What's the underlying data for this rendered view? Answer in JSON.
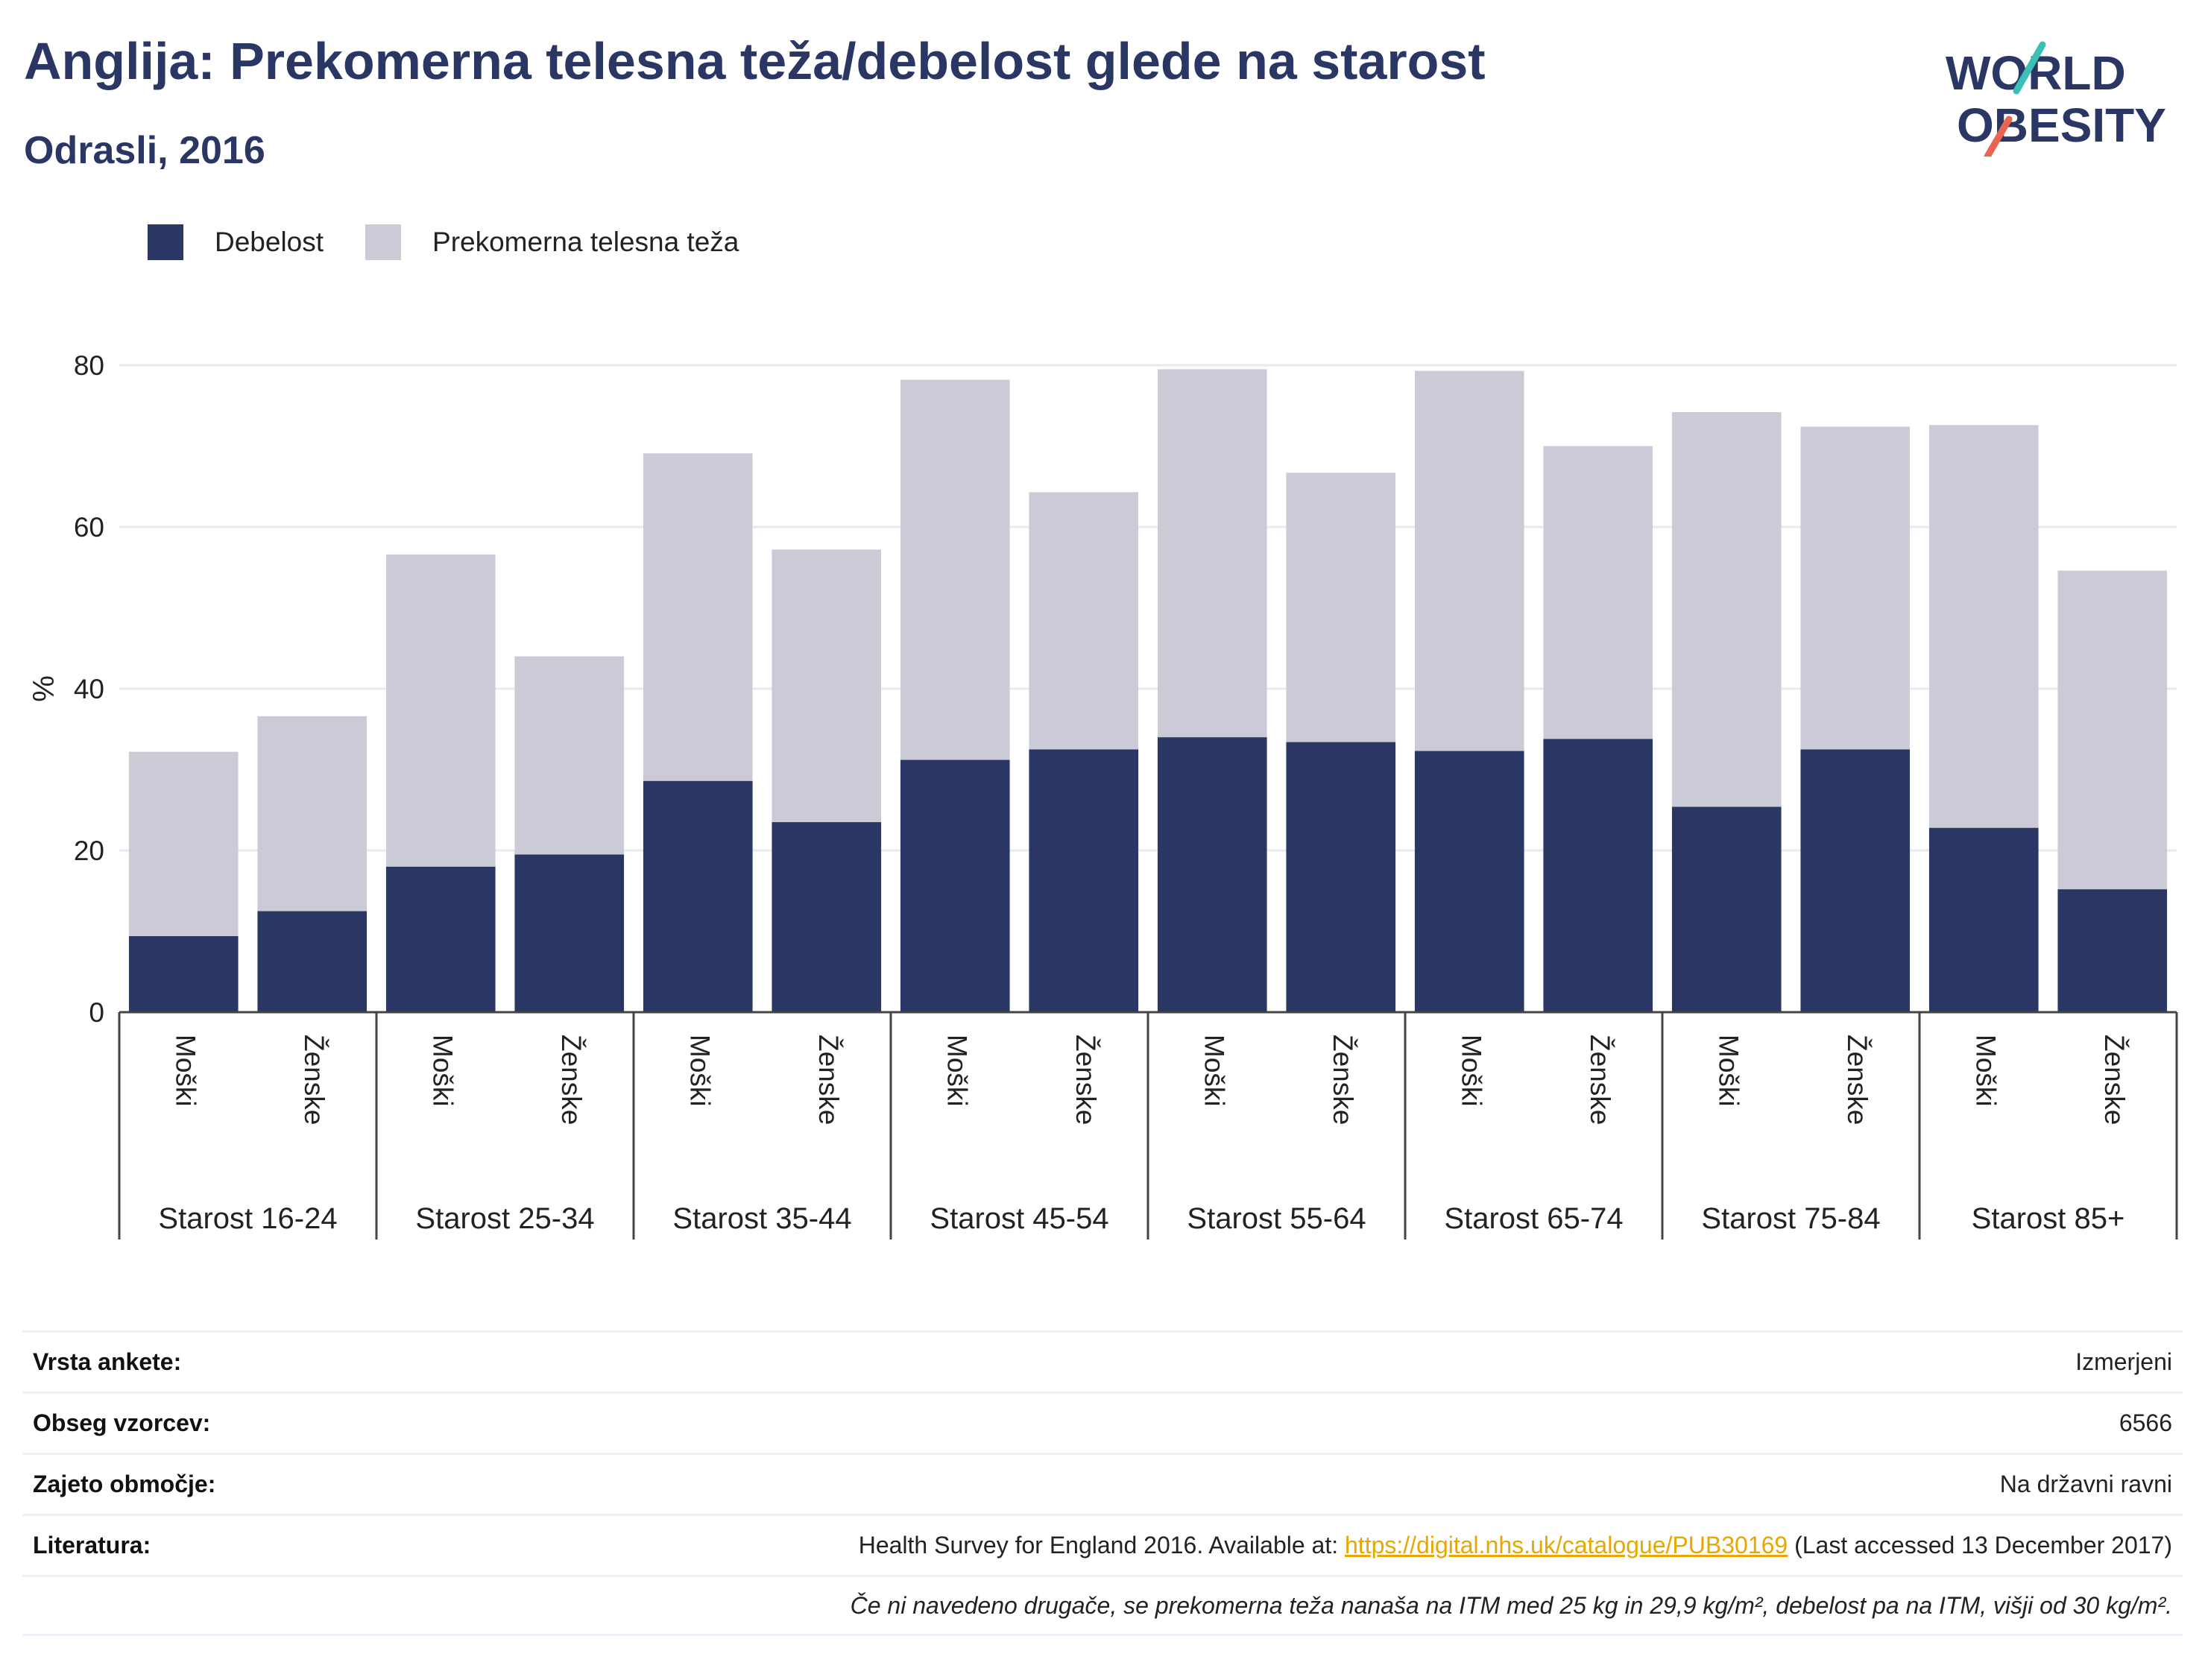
{
  "header": {
    "title": "Anglija: Prekomerna telesna teža/debelost glede na starost",
    "subtitle": "Odrasli, 2016"
  },
  "logo": {
    "line1": "WORLD",
    "line2": "OBESITY"
  },
  "colors": {
    "obesity": "#2a3764",
    "overweight": "#cacbd7",
    "accent_teal": "#3cbfb4",
    "accent_red": "#e8654f",
    "link": "#e6a800"
  },
  "legend": [
    {
      "label": "Debelost",
      "color": "#2a3764"
    },
    {
      "label": "Prekomerna telesna teža",
      "color": "#cacbd7"
    }
  ],
  "chart_data": {
    "type": "bar",
    "stacked": true,
    "ylabel": "%",
    "ylim": [
      0,
      80
    ],
    "yticks": [
      0,
      20,
      40,
      60,
      80
    ],
    "grid": true,
    "legend_position": "top-left",
    "groups": [
      "Starost 16-24",
      "Starost 25-34",
      "Starost 35-44",
      "Starost 45-54",
      "Starost 55-64",
      "Starost 65-74",
      "Starost 75-84",
      "Starost 85+"
    ],
    "subcategories": [
      "Moški",
      "Ženske"
    ],
    "series": [
      {
        "name": "Debelost",
        "values": [
          9.4,
          12.5,
          18.0,
          19.5,
          28.6,
          23.5,
          31.2,
          32.5,
          34.0,
          33.4,
          32.3,
          33.8,
          25.4,
          32.5,
          22.8,
          15.2
        ]
      },
      {
        "name": "Prekomerna telesna teža",
        "values": [
          22.8,
          24.1,
          38.6,
          24.5,
          40.5,
          33.7,
          47.0,
          31.8,
          45.5,
          33.3,
          47.0,
          36.2,
          48.8,
          39.9,
          49.8,
          39.4
        ]
      }
    ]
  },
  "info": {
    "rows": [
      {
        "key": "Vrsta ankete:",
        "value": "Izmerjeni"
      },
      {
        "key": "Obseg vzorcev:",
        "value": "6566"
      },
      {
        "key": "Zajeto območje:",
        "value": "Na državni ravni"
      }
    ],
    "literature": {
      "key": "Literatura:",
      "prefix": "Health Survey for England 2016. Available at: ",
      "link": "https://digital.nhs.uk/catalogue/PUB30169",
      "suffix": " (Last accessed 13 December 2017)"
    },
    "note": "Če ni navedeno drugače, se prekomerna teža nanaša na ITM med 25 kg in 29,9 kg/m², debelost pa na ITM, višji od 30 kg/m²."
  }
}
